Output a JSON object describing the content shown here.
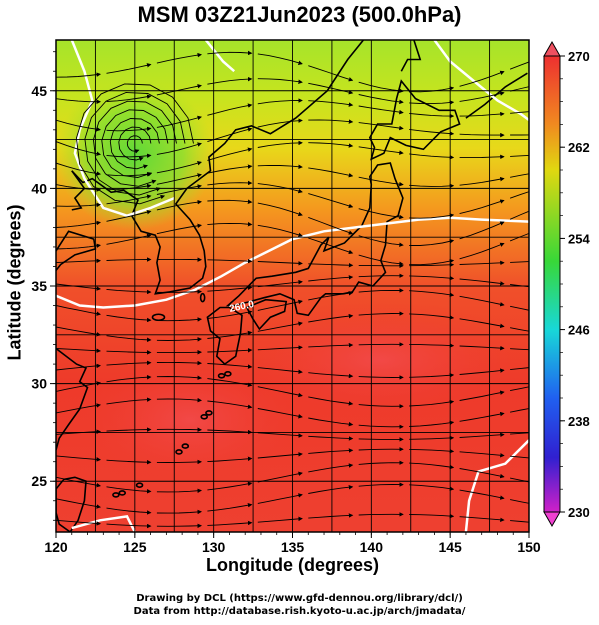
{
  "title": "MSM 03Z21Jun2023 (500.0hPa)",
  "chart_data": {
    "type": "heatmap",
    "xlabel": "Longitude (degrees)",
    "ylabel": "Latitude  (degrees)",
    "xlim": [
      120,
      150
    ],
    "ylim": [
      22.4,
      47.6
    ],
    "x_ticks": [
      "120",
      "125",
      "130",
      "135",
      "140",
      "145",
      "150"
    ],
    "y_ticks": [
      "25",
      "30",
      "35",
      "40",
      "45"
    ],
    "colorbar": {
      "min": 230,
      "max": 270,
      "ticks": [
        "270",
        "262",
        "254",
        "246",
        "238",
        "230"
      ]
    },
    "contour_labels": [
      "260.0"
    ],
    "contour_value": 260.0,
    "features": [
      "low-pressure vortex near 125E 42N",
      "westerly streamlines"
    ]
  },
  "credits": {
    "line1": "Drawing by DCL (https://www.gfd-dennou.org/library/dcl/)",
    "line2": "Data from http://database.rish.kyoto-u.ac.jp/arch/jmadata/"
  }
}
